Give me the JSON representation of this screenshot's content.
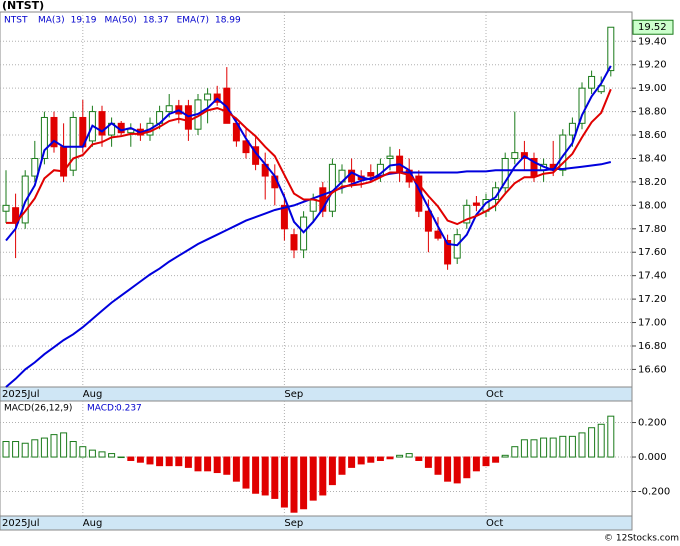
{
  "chart_data": [
    {
      "type": "candlestick",
      "title": "(NTST)",
      "symbol": "NTST",
      "categories": [
        "2025Jul",
        null,
        null,
        null,
        null,
        null,
        null,
        null,
        "Aug",
        null,
        null,
        null,
        null,
        null,
        null,
        null,
        null,
        null,
        null,
        null,
        null,
        null,
        null,
        null,
        null,
        null,
        null,
        null,
        null,
        "Sep",
        null,
        null,
        null,
        null,
        null,
        null,
        null,
        null,
        null,
        null,
        null,
        null,
        null,
        null,
        null,
        null,
        null,
        null,
        null,
        null,
        "Oct",
        null,
        null,
        null,
        null,
        null,
        null,
        null,
        null,
        null,
        null,
        null,
        null,
        null
      ],
      "open": [
        17.95,
        17.98,
        17.85,
        18.25,
        18.4,
        18.75,
        18.5,
        18.3,
        18.75,
        18.55,
        18.8,
        18.6,
        18.7,
        18.62,
        18.65,
        18.6,
        18.7,
        18.8,
        18.85,
        18.85,
        18.65,
        18.9,
        18.95,
        19.0,
        18.7,
        18.55,
        18.5,
        18.35,
        18.25,
        18.0,
        17.75,
        17.62,
        17.95,
        18.15,
        17.95,
        18.2,
        18.3,
        18.25,
        18.28,
        18.25,
        18.4,
        18.42,
        18.3,
        18.25,
        17.95,
        17.78,
        17.7,
        17.55,
        17.85,
        18.02,
        17.95,
        18.05,
        18.15,
        18.4,
        18.45,
        18.4,
        18.3,
        18.35,
        18.3,
        18.6,
        18.7,
        19.0,
        18.97,
        19.15
      ],
      "high": [
        18.3,
        18.1,
        18.3,
        18.55,
        18.8,
        18.8,
        18.7,
        18.8,
        18.9,
        18.85,
        18.85,
        18.75,
        18.72,
        18.7,
        18.7,
        18.75,
        18.85,
        18.95,
        18.9,
        18.9,
        18.95,
        19.0,
        19.02,
        19.18,
        18.75,
        18.65,
        18.6,
        18.45,
        18.35,
        18.1,
        17.8,
        17.95,
        18.1,
        18.2,
        18.4,
        18.35,
        18.4,
        18.3,
        18.35,
        18.4,
        18.5,
        18.48,
        18.4,
        18.3,
        18.05,
        17.9,
        17.75,
        17.8,
        18.05,
        18.08,
        18.1,
        18.2,
        18.45,
        18.8,
        18.55,
        18.45,
        18.4,
        18.55,
        18.65,
        18.75,
        19.05,
        19.15,
        19.1,
        19.52
      ],
      "low": [
        17.85,
        17.55,
        17.8,
        18.2,
        18.35,
        18.45,
        18.2,
        18.25,
        18.45,
        18.5,
        18.5,
        18.5,
        18.6,
        18.5,
        18.55,
        18.55,
        18.65,
        18.75,
        18.7,
        18.55,
        18.6,
        18.7,
        18.85,
        18.7,
        18.5,
        18.4,
        18.3,
        18.05,
        18.0,
        17.7,
        17.55,
        17.55,
        17.85,
        17.9,
        17.9,
        18.1,
        18.15,
        18.15,
        18.2,
        18.2,
        18.3,
        18.2,
        18.15,
        17.9,
        17.6,
        17.7,
        17.45,
        17.5,
        17.8,
        17.95,
        17.9,
        17.95,
        18.1,
        18.35,
        18.3,
        18.2,
        18.2,
        18.25,
        18.25,
        18.5,
        18.65,
        18.95,
        18.95,
        19.1
      ],
      "close": [
        18.0,
        17.85,
        18.25,
        18.4,
        18.75,
        18.5,
        18.25,
        18.75,
        18.5,
        18.8,
        18.6,
        18.7,
        18.62,
        18.65,
        18.6,
        18.7,
        18.8,
        18.85,
        18.78,
        18.65,
        18.9,
        18.95,
        18.88,
        18.7,
        18.55,
        18.45,
        18.35,
        18.25,
        18.15,
        17.8,
        17.62,
        17.9,
        18.05,
        17.95,
        18.35,
        18.3,
        18.2,
        18.22,
        18.25,
        18.35,
        18.42,
        18.28,
        18.2,
        17.95,
        17.78,
        17.72,
        17.5,
        17.75,
        18.0,
        18.0,
        18.05,
        18.15,
        18.4,
        18.45,
        18.4,
        18.25,
        18.35,
        18.3,
        18.6,
        18.7,
        19.0,
        19.1,
        19.02,
        19.52
      ],
      "up_color": "#1a7a1a",
      "down_color": "#e00000",
      "series": [
        {
          "name": "MA(3)",
          "color": "#0000dd",
          "values": [
            17.7,
            17.8,
            18.03,
            18.17,
            18.47,
            18.55,
            18.5,
            18.5,
            18.5,
            18.68,
            18.63,
            18.7,
            18.64,
            18.66,
            18.62,
            18.65,
            18.7,
            18.78,
            18.81,
            18.76,
            18.78,
            18.83,
            18.91,
            18.84,
            18.71,
            18.57,
            18.45,
            18.35,
            18.25,
            18.07,
            17.86,
            17.77,
            17.86,
            17.97,
            18.12,
            18.2,
            18.28,
            18.24,
            18.22,
            18.27,
            18.34,
            18.35,
            18.3,
            18.14,
            17.98,
            17.82,
            17.67,
            17.66,
            17.75,
            17.92,
            18.02,
            18.07,
            18.2,
            18.33,
            18.42,
            18.37,
            18.33,
            18.3,
            18.42,
            18.53,
            18.77,
            18.93,
            19.04,
            19.19
          ]
        },
        {
          "name": "MA(50)",
          "color": "#0000dd",
          "values": [
            16.45,
            16.52,
            16.6,
            16.66,
            16.73,
            16.79,
            16.85,
            16.9,
            16.96,
            17.03,
            17.1,
            17.17,
            17.23,
            17.29,
            17.35,
            17.41,
            17.46,
            17.52,
            17.57,
            17.62,
            17.67,
            17.71,
            17.75,
            17.79,
            17.83,
            17.87,
            17.9,
            17.93,
            17.96,
            17.98,
            18.0,
            18.03,
            18.06,
            18.09,
            18.12,
            18.15,
            18.18,
            18.21,
            18.23,
            18.25,
            18.27,
            18.28,
            18.28,
            18.28,
            18.28,
            18.28,
            18.28,
            18.28,
            18.29,
            18.29,
            18.29,
            18.3,
            18.3,
            18.3,
            18.3,
            18.3,
            18.3,
            18.31,
            18.31,
            18.32,
            18.33,
            18.34,
            18.35,
            18.37
          ]
        },
        {
          "name": "EMA(7)",
          "color": "#e00000",
          "values": [
            17.85,
            17.85,
            17.95,
            18.06,
            18.23,
            18.3,
            18.29,
            18.4,
            18.43,
            18.52,
            18.54,
            18.58,
            18.59,
            18.61,
            18.61,
            18.63,
            18.67,
            18.72,
            18.74,
            18.72,
            18.76,
            18.81,
            18.83,
            18.8,
            18.74,
            18.66,
            18.59,
            18.5,
            18.42,
            18.26,
            18.1,
            18.05,
            18.05,
            18.03,
            18.11,
            18.16,
            18.17,
            18.18,
            18.2,
            18.24,
            18.28,
            18.28,
            18.26,
            18.18,
            18.08,
            17.99,
            17.87,
            17.84,
            17.88,
            17.91,
            17.95,
            18.0,
            18.1,
            18.19,
            18.24,
            18.24,
            18.27,
            18.28,
            18.36,
            18.44,
            18.58,
            18.71,
            18.79,
            18.99
          ]
        }
      ],
      "ylim": [
        16.45,
        19.65
      ],
      "yticks": [
        {
          "value": 16.6,
          "label": "16.60"
        },
        {
          "value": 16.8,
          "label": "16.80"
        },
        {
          "value": 17.0,
          "label": "17.00"
        },
        {
          "value": 17.2,
          "label": "17.20"
        },
        {
          "value": 17.4,
          "label": "17.40"
        },
        {
          "value": 17.6,
          "label": "17.60"
        },
        {
          "value": 17.8,
          "label": "17.80"
        },
        {
          "value": 18.0,
          "label": "18.00"
        },
        {
          "value": 18.2,
          "label": "18.20"
        },
        {
          "value": 18.4,
          "label": "18.40"
        },
        {
          "value": 18.6,
          "label": "18.60"
        },
        {
          "value": 18.8,
          "label": "18.80"
        },
        {
          "value": 19.0,
          "label": "19.00"
        },
        {
          "value": 19.2,
          "label": "19.20"
        },
        {
          "value": 19.4,
          "label": "19.40"
        }
      ],
      "grid": true
    },
    {
      "type": "bar",
      "title": "MACD(26,12,9)",
      "value_label": "MACD:",
      "categories": [
        "2025Jul",
        null,
        null,
        null,
        null,
        null,
        null,
        null,
        "Aug",
        null,
        null,
        null,
        null,
        null,
        null,
        null,
        null,
        null,
        null,
        null,
        null,
        null,
        null,
        null,
        null,
        null,
        null,
        null,
        null,
        "Sep",
        null,
        null,
        null,
        null,
        null,
        null,
        null,
        null,
        null,
        null,
        null,
        null,
        null,
        null,
        null,
        null,
        null,
        null,
        null,
        null,
        "Oct",
        null,
        null,
        null,
        null,
        null,
        null,
        null,
        null,
        null,
        null,
        null,
        null,
        null
      ],
      "values": [
        0.09,
        0.09,
        0.08,
        0.1,
        0.11,
        0.13,
        0.14,
        0.09,
        0.06,
        0.04,
        0.03,
        0.02,
        0.0,
        -0.02,
        -0.03,
        -0.04,
        -0.05,
        -0.05,
        -0.05,
        -0.06,
        -0.08,
        -0.08,
        -0.09,
        -0.1,
        -0.14,
        -0.18,
        -0.21,
        -0.22,
        -0.24,
        -0.29,
        -0.32,
        -0.3,
        -0.25,
        -0.22,
        -0.16,
        -0.1,
        -0.06,
        -0.04,
        -0.03,
        -0.02,
        -0.01,
        0.01,
        0.02,
        -0.02,
        -0.06,
        -0.1,
        -0.14,
        -0.15,
        -0.12,
        -0.08,
        -0.05,
        -0.03,
        0.01,
        0.06,
        0.1,
        0.1,
        0.11,
        0.11,
        0.12,
        0.12,
        0.14,
        0.17,
        0.19,
        0.237
      ],
      "pos_color": "#1a7a1a",
      "neg_color": "#e00000",
      "ylim": [
        -0.342,
        0.325
      ],
      "yticks": [
        {
          "value": -0.2,
          "label": "-0.200"
        },
        {
          "value": 0,
          "label": "0.000"
        },
        {
          "value": 0.2,
          "label": "0.200"
        }
      ],
      "grid": true
    }
  ],
  "footer": "© 12Stocks.com"
}
